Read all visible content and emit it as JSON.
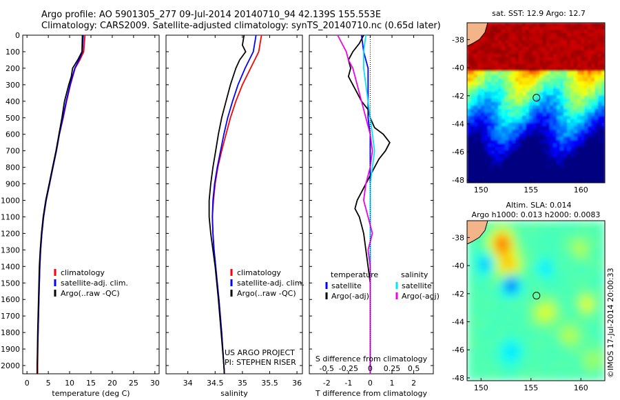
{
  "header": {
    "line1": "Argo profile: AO 5901305_277 09-Jul-2014 20140710_94 42.139S 155.553E",
    "line2": "Climatology: CARS2009. Satellite-adjusted climatology: synTS_20140710.nc (0.65d later)"
  },
  "credit": "©IMOS 17-Jul-2014 20:00:33",
  "colors": {
    "climatology": "#ff0000",
    "satellite": "#0000ff",
    "argo": "#000000",
    "sat_salinity": "#00e5ff",
    "argo_salinity": "#ee00ee",
    "land": "#f4b48a"
  },
  "chart_data": [
    {
      "type": "line",
      "id": "temperature",
      "xlabel": "temperature (deg C)",
      "ylabel": "",
      "xlim": [
        -1,
        31
      ],
      "ylim": [
        2050,
        0
      ],
      "xticks": [
        0,
        5,
        10,
        15,
        20,
        25,
        30
      ],
      "yticks": [
        0,
        100,
        200,
        300,
        400,
        500,
        600,
        700,
        800,
        900,
        1000,
        1100,
        1200,
        1300,
        1400,
        1500,
        1600,
        1700,
        1800,
        1900,
        2000
      ],
      "legend": [
        "climatology",
        "satellite-adj. clim.",
        "Argo(..raw -QC)"
      ],
      "series": [
        {
          "name": "climatology",
          "color": "#ff0000",
          "depth": [
            0,
            100,
            150,
            200,
            300,
            400,
            500,
            600,
            700,
            800,
            900,
            1000,
            1100,
            1200,
            1300,
            1400,
            1600,
            1800,
            2000,
            2050
          ],
          "values": [
            13.6,
            13.3,
            12.4,
            11.3,
            10.2,
            9.3,
            8.5,
            7.6,
            6.9,
            6.1,
            5.3,
            4.5,
            3.9,
            3.5,
            3.2,
            3.0,
            2.8,
            2.6,
            2.5,
            2.5
          ]
        },
        {
          "name": "satellite-adj. clim.",
          "color": "#0000ff",
          "depth": [
            0,
            100,
            150,
            200,
            300,
            400,
            500,
            600,
            700,
            800,
            900,
            1000,
            1100,
            1200,
            1300,
            1400,
            1600,
            1800,
            2000,
            2050
          ],
          "values": [
            13.2,
            13.0,
            12.2,
            11.2,
            10.1,
            9.2,
            8.4,
            7.6,
            6.9,
            6.1,
            5.3,
            4.5,
            3.9,
            3.5,
            3.2,
            3.0,
            2.8,
            2.6,
            2.4,
            2.4
          ]
        },
        {
          "name": "Argo(..raw -QC)",
          "color": "#000000",
          "depth": [
            0,
            100,
            150,
            200,
            250,
            300,
            400,
            500,
            600,
            700,
            800,
            900,
            1000,
            1100,
            1200,
            1300,
            1400,
            1600,
            1800,
            2000,
            2050
          ],
          "values": [
            13.0,
            12.9,
            11.9,
            10.7,
            10.4,
            9.8,
            8.8,
            8.2,
            7.5,
            6.8,
            6.0,
            5.2,
            4.4,
            3.8,
            3.4,
            3.1,
            2.9,
            2.7,
            2.5,
            2.4,
            2.4
          ]
        }
      ]
    },
    {
      "type": "line",
      "id": "salinity",
      "xlabel": "salinity",
      "ylabel": "",
      "xlim": [
        33.6,
        36.1
      ],
      "ylim": [
        2050,
        0
      ],
      "xticks": [
        34,
        34.5,
        35,
        35.5,
        36
      ],
      "legend": [
        "climatology",
        "satellite-adj. clim.",
        "Argo(..raw -QC)"
      ],
      "annotation": [
        "US ARGO PROJECT",
        "PI: STEPHEN RISER"
      ],
      "series": [
        {
          "name": "climatology",
          "color": "#ff0000",
          "depth": [
            0,
            100,
            200,
            300,
            400,
            500,
            600,
            700,
            800,
            900,
            1000,
            1100,
            1200,
            1300,
            1400,
            1500,
            1600,
            1800,
            2000,
            2050
          ],
          "values": [
            35.35,
            35.3,
            35.15,
            35.0,
            34.88,
            34.78,
            34.7,
            34.62,
            34.55,
            34.5,
            34.47,
            34.45,
            34.46,
            34.48,
            34.51,
            34.54,
            34.57,
            34.62,
            34.66,
            34.67
          ]
        },
        {
          "name": "satellite-adj. clim.",
          "color": "#0000ff",
          "depth": [
            0,
            100,
            200,
            300,
            400,
            500,
            600,
            700,
            800,
            900,
            1000,
            1100,
            1200,
            1300,
            1400,
            1500,
            1600,
            1800,
            2000,
            2050
          ],
          "values": [
            35.25,
            35.2,
            35.05,
            34.92,
            34.82,
            34.73,
            34.66,
            34.6,
            34.54,
            34.49,
            34.46,
            34.45,
            34.46,
            34.48,
            34.51,
            34.54,
            34.57,
            34.62,
            34.66,
            34.67
          ]
        },
        {
          "name": "Argo(..raw -QC)",
          "color": "#000000",
          "depth": [
            0,
            60,
            100,
            150,
            200,
            300,
            400,
            500,
            600,
            700,
            800,
            900,
            1000,
            1100,
            1200,
            1300,
            1400,
            1500,
            1600,
            1800,
            2000,
            2050
          ],
          "values": [
            35.03,
            35.0,
            35.06,
            34.95,
            34.88,
            34.78,
            34.7,
            34.62,
            34.56,
            34.51,
            34.46,
            34.42,
            34.39,
            34.39,
            34.42,
            34.46,
            34.5,
            34.53,
            34.56,
            34.61,
            34.66,
            34.67
          ]
        }
      ]
    },
    {
      "type": "line",
      "id": "difference",
      "xlabel": "T difference from climatology",
      "xlabel2": "S difference from climatology",
      "xlim": [
        -2.8,
        2.9
      ],
      "ylim": [
        2050,
        0
      ],
      "xticks": [
        -2,
        -1,
        0,
        1,
        2
      ],
      "xticks2_labels": [
        "-0.5",
        "-0.25",
        "0",
        "0.25",
        "0.5"
      ],
      "xticks2_pos": [
        -2,
        -1,
        0,
        1,
        2
      ],
      "legend_headers": [
        "temperature",
        "salinity"
      ],
      "legend": [
        "satellite",
        "Argo(-adj)",
        "satellite",
        "Argo(-adj)"
      ],
      "series": [
        {
          "name": "satellite",
          "color": "#0000ff",
          "depth": [
            0,
            100,
            200,
            300,
            400,
            500,
            600,
            700,
            800,
            900,
            1000,
            1200,
            1400,
            1600,
            1800,
            2000,
            2050
          ],
          "values": [
            -0.4,
            -0.3,
            -0.1,
            -0.1,
            -0.1,
            -0.1,
            0.0,
            0.0,
            0.0,
            0.0,
            0.0,
            0.0,
            0.0,
            0.0,
            0.0,
            0.0,
            0.0
          ]
        },
        {
          "name": "Argo(-adj)",
          "color": "#000000",
          "depth": [
            0,
            50,
            100,
            150,
            200,
            250,
            300,
            350,
            400,
            450,
            500,
            560,
            600,
            650,
            700,
            750,
            800,
            900,
            1000,
            1050,
            1100,
            1150,
            1200,
            1300,
            1400,
            1500,
            1600,
            1800,
            2000,
            2050
          ],
          "values": [
            -0.3,
            -0.5,
            -0.8,
            -1.0,
            -0.9,
            -1.0,
            -0.8,
            -0.6,
            -0.4,
            -0.1,
            0.0,
            0.2,
            0.6,
            0.9,
            0.7,
            0.4,
            0.2,
            -0.2,
            -0.6,
            -0.7,
            -0.5,
            -0.4,
            -0.3,
            -0.2,
            -0.1,
            0.0,
            0.0,
            0.0,
            0.0,
            0.0
          ]
        },
        {
          "name": "satellite",
          "color": "#00e5ff",
          "depth": [
            0,
            100,
            200,
            300,
            400,
            500,
            600,
            700,
            800,
            900,
            1000,
            1200,
            1400,
            1600,
            1800,
            2000,
            2050
          ],
          "values": [
            -0.2,
            -0.3,
            -0.3,
            -0.2,
            -0.1,
            0.0,
            0.1,
            0.2,
            0.1,
            0.0,
            0.0,
            0.0,
            0.0,
            0.0,
            0.0,
            0.0,
            0.0
          ]
        },
        {
          "name": "Argo(-adj)",
          "color": "#ee00ee",
          "depth": [
            0,
            50,
            100,
            150,
            200,
            300,
            400,
            500,
            600,
            700,
            800,
            900,
            1000,
            1100,
            1200,
            1300,
            1400,
            1500,
            1600,
            1800,
            2000,
            2050
          ],
          "values": [
            -1.5,
            -1.3,
            -1.1,
            -1.0,
            -0.8,
            -0.6,
            -0.4,
            -0.2,
            0.0,
            0.1,
            0.0,
            -0.2,
            -0.3,
            -0.1,
            0.1,
            -0.1,
            0.0,
            0.0,
            0.0,
            0.0,
            0.0,
            0.0
          ]
        }
      ]
    },
    {
      "type": "heatmap",
      "id": "sst-map",
      "title": "sat. SST: 12.9 Argo: 12.7",
      "xticks": [
        150,
        155,
        160
      ],
      "yticks": [
        -38,
        -40,
        -42,
        -44,
        -46,
        -48
      ],
      "xlim": [
        148.6,
        162.4
      ],
      "ylim": [
        -48.2,
        -36.8
      ],
      "marker": {
        "lon": 155.55,
        "lat": -42.14
      }
    },
    {
      "type": "heatmap",
      "id": "sla-map",
      "title": "Altim. SLA: 0.014",
      "subtitle": "Argo h1000: 0.013 h2000: 0.0083",
      "xticks": [
        150,
        155,
        160
      ],
      "yticks": [
        -38,
        -40,
        -42,
        -44,
        -46,
        -48
      ],
      "xlim": [
        148.6,
        162.4
      ],
      "ylim": [
        -48.2,
        -36.8
      ],
      "marker": {
        "lon": 155.55,
        "lat": -42.14
      }
    }
  ]
}
